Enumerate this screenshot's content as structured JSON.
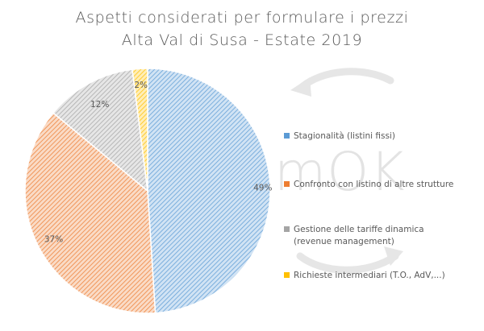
{
  "chart_data": {
    "type": "pie",
    "title": [
      "Aspetti considerati per formulare i prezzi",
      "Alta Val di Susa - Estate 2019"
    ],
    "categories": [
      "Stagionalità (listini fissi)",
      "Confronto con listino di altre strutture",
      "Gestione delle tariffe dinamica (revenue management)",
      "Richieste intermediari (T.O., AdV,...)"
    ],
    "legend_lines": [
      [
        "Stagionalità (listini fissi)"
      ],
      [
        "Confronto con listino di altre strutture"
      ],
      [
        "Gestione delle tariffe dinamica",
        "(revenue management)"
      ],
      [
        "Richieste intermediari (T.O., AdV,...)"
      ]
    ],
    "values": [
      49,
      37,
      12,
      2
    ],
    "data_labels": [
      "49%",
      "37%",
      "12%",
      "2%"
    ],
    "colors": [
      "#5b9bd5",
      "#ed7d31",
      "#a5a5a5",
      "#ffc000"
    ],
    "legend_position": "right"
  },
  "watermark": {
    "text": "mOK"
  }
}
